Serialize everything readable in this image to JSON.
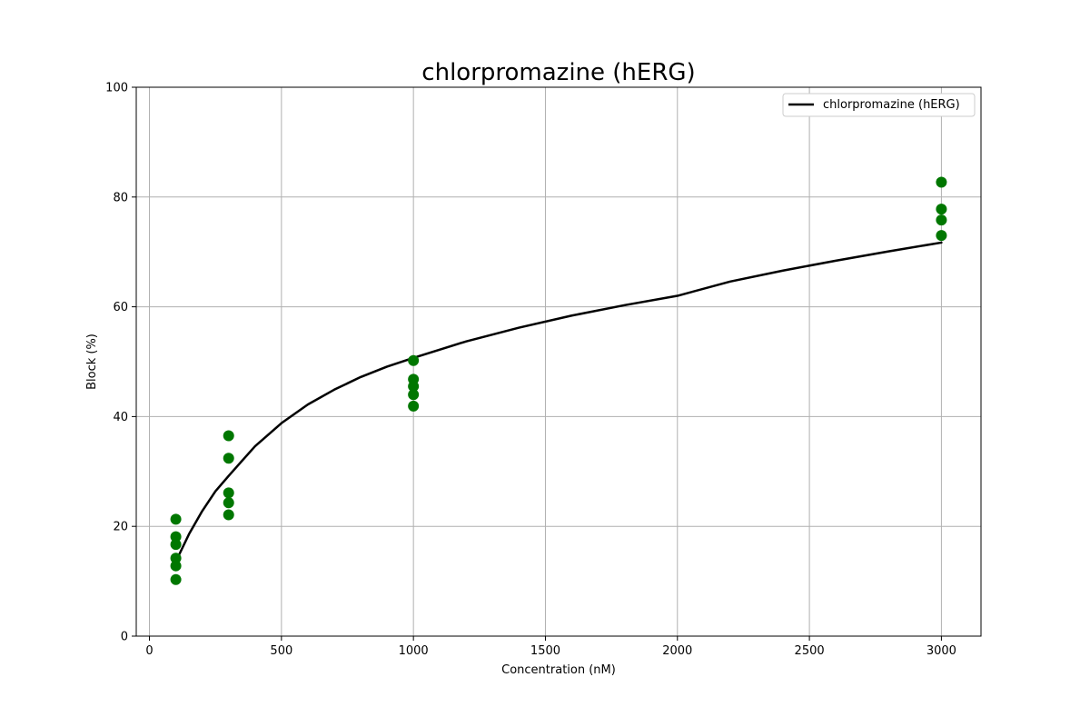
{
  "chart_data": {
    "type": "scatter",
    "title": "chlorpromazine (hERG)",
    "xlabel": "Concentration (nM)",
    "ylabel": "Block (%)",
    "xlim": [
      -50,
      3150
    ],
    "ylim": [
      0,
      100
    ],
    "xticks": [
      0,
      500,
      1000,
      1500,
      2000,
      2500,
      3000
    ],
    "yticks": [
      0,
      20,
      40,
      60,
      80,
      100
    ],
    "grid": true,
    "legend_position": "top-right",
    "point_color": "#007700",
    "line_color": "#000000",
    "points": [
      {
        "x": 100,
        "y": 21.3
      },
      {
        "x": 100,
        "y": 18.1
      },
      {
        "x": 100,
        "y": 16.7
      },
      {
        "x": 100,
        "y": 14.2
      },
      {
        "x": 100,
        "y": 12.8
      },
      {
        "x": 100,
        "y": 10.3
      },
      {
        "x": 300,
        "y": 36.5
      },
      {
        "x": 300,
        "y": 32.4
      },
      {
        "x": 300,
        "y": 26.1
      },
      {
        "x": 300,
        "y": 24.3
      },
      {
        "x": 300,
        "y": 22.1
      },
      {
        "x": 1000,
        "y": 50.2
      },
      {
        "x": 1000,
        "y": 46.8
      },
      {
        "x": 1000,
        "y": 45.5
      },
      {
        "x": 1000,
        "y": 44.0
      },
      {
        "x": 1000,
        "y": 41.9
      },
      {
        "x": 3000,
        "y": 82.7
      },
      {
        "x": 3000,
        "y": 77.8
      },
      {
        "x": 3000,
        "y": 75.8
      },
      {
        "x": 3000,
        "y": 73.0
      }
    ],
    "series": [
      {
        "name": "chlorpromazine (hERG)",
        "type": "line",
        "x": [
          100,
          150,
          200,
          250,
          300,
          400,
          500,
          600,
          700,
          800,
          900,
          1000,
          1200,
          1400,
          1600,
          1800,
          2000,
          2200,
          2400,
          2600,
          2800,
          3000
        ],
        "y": [
          13.6,
          18.6,
          22.8,
          26.4,
          29.2,
          34.6,
          38.8,
          42.2,
          44.9,
          47.2,
          49.1,
          50.7,
          53.7,
          56.2,
          58.4,
          60.3,
          62.0,
          64.6,
          66.6,
          68.4,
          70.1,
          71.7
        ]
      }
    ]
  }
}
